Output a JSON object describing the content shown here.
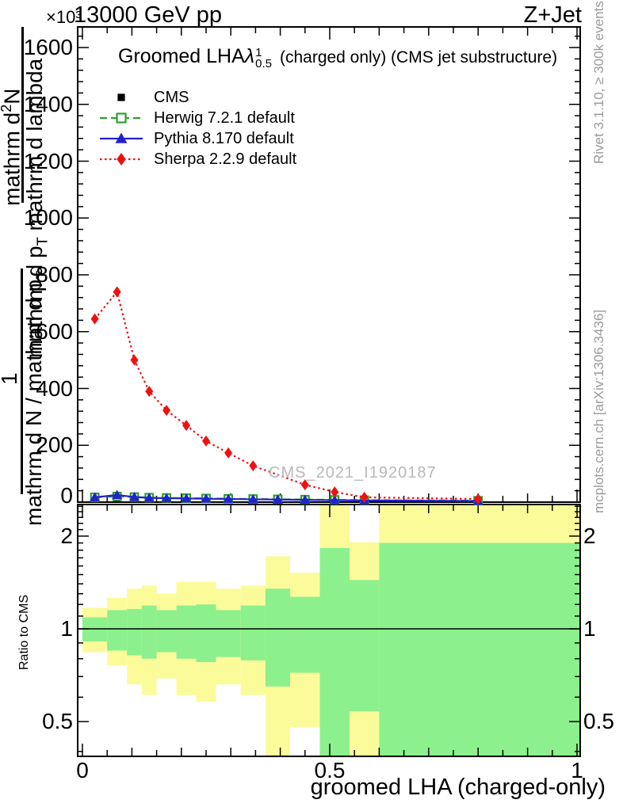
{
  "header": {
    "scale_label": "×10³",
    "beam_title": "13000 GeV pp",
    "process_label": "Z+Jet"
  },
  "plot_title": {
    "name": "Groomed LHA",
    "lambda": "λ",
    "lambda_sup": "1",
    "lambda_sub": "0.5",
    "qualifier": "(charged only) (CMS jet substructure)"
  },
  "watermark": "CMS_2021_I1920187",
  "sidebar_right": {
    "top": "Rivet 3.1.10, ≥ 300k events",
    "bottom": "mcplots.cern.ch [arXiv:1306.3436]"
  },
  "y_label": {
    "upper": {
      "num_parts": [
        {
          "t": "mathrm d"
        },
        {
          "t": "2",
          "sup": true
        },
        {
          "t": "N"
        }
      ],
      "den_parts": [
        {
          "t": "mathrm d p"
        },
        {
          "t": "T",
          "sub": true
        },
        {
          "t": " mathrm d lambda"
        }
      ]
    },
    "lower": {
      "num_parts": [
        {
          "t": "1"
        }
      ],
      "den_parts": [
        {
          "t": "mathrm d N / mathrm d p"
        },
        {
          "t": "T",
          "sub": true
        }
      ]
    }
  },
  "chart_data": {
    "type": "line",
    "title": "Groomed LHA lambda^1_0.5 (charged only) (CMS jet substructure)",
    "xlabel": "groomed LHA (charged-only)",
    "ylabel": "1/(dN/dp_T) d^2N/(dp_T dlambda)",
    "y_unit_multiplier": "×10³",
    "x_range": [
      0,
      1
    ],
    "y_range_10e3": [
      0,
      1671
    ],
    "x_major_ticks": [
      {
        "v": 0,
        "label": "0"
      },
      {
        "v": 0.5,
        "label": "0.5"
      },
      {
        "v": 1,
        "label": "1"
      }
    ],
    "x_medium_step": 0.1,
    "x_minor_step": 0.05,
    "y_major_ticks": [
      {
        "v": 0,
        "label": "0"
      },
      {
        "v": 200,
        "label": "200"
      },
      {
        "v": 400,
        "label": "400"
      },
      {
        "v": 600,
        "label": "600"
      },
      {
        "v": 800,
        "label": "800"
      },
      {
        "v": 1000,
        "label": "1000"
      },
      {
        "v": 1200,
        "label": "1200"
      },
      {
        "v": 1400,
        "label": "1400"
      },
      {
        "v": 1600,
        "label": "1600"
      }
    ],
    "y_minor_step": 40,
    "grid": false,
    "legend_position": "top-left-inside",
    "bin_edges": [
      0,
      0.05,
      0.09,
      0.12,
      0.15,
      0.19,
      0.23,
      0.27,
      0.32,
      0.37,
      0.42,
      0.48,
      0.54,
      0.6,
      1.0
    ],
    "bin_centers": [
      0.025,
      0.07,
      0.105,
      0.135,
      0.17,
      0.21,
      0.25,
      0.295,
      0.345,
      0.395,
      0.45,
      0.51,
      0.57,
      0.8
    ],
    "series": [
      {
        "name": "CMS",
        "color": "#000000",
        "marker": "filled-square",
        "line": "none",
        "values_10e3": [
          11,
          13,
          12,
          11,
          10,
          10,
          9,
          8,
          8,
          7,
          6,
          6,
          5,
          4
        ]
      },
      {
        "name": "Herwig 7.2.1 default",
        "color": "#2da02d",
        "marker": "open-square",
        "line": "dashed",
        "values_10e3": [
          17,
          20,
          18,
          16,
          15,
          14,
          13,
          12,
          11,
          10,
          9,
          8,
          7,
          5
        ]
      },
      {
        "name": "Pythia 8.170 default",
        "color": "#2222cc",
        "marker": "filled-triangle",
        "line": "solid",
        "values_10e3": [
          17,
          25,
          18,
          15,
          14,
          13,
          12,
          11,
          10,
          9,
          8,
          7,
          6,
          4
        ]
      },
      {
        "name": "Sherpa 2.2.9 default",
        "color": "#ee1111",
        "marker": "filled-diamond",
        "line": "dotted",
        "values_10e3": [
          645,
          740,
          500,
          390,
          323,
          270,
          215,
          173,
          128,
          null,
          61,
          36,
          17,
          11
        ]
      }
    ],
    "ratio": {
      "ylabel": "Ratio to CMS",
      "scale": "log",
      "y_range": [
        0.386,
        2.53
      ],
      "major_ticks": [
        {
          "v": 0.5,
          "label": "0.5"
        },
        {
          "v": 1,
          "label": "1"
        },
        {
          "v": 2,
          "label": "2"
        }
      ],
      "minor_tick_step": 0.1,
      "minor_tick_range": [
        0.4,
        2.5
      ],
      "reference_line": 1,
      "band_colors": {
        "outer": "#fbfb9a",
        "inner": "#8cf08c"
      },
      "yellow_band": [
        [
          0.84,
          1.17
        ],
        [
          0.76,
          1.26
        ],
        [
          0.66,
          1.35
        ],
        [
          0.61,
          1.38
        ],
        [
          0.69,
          1.3
        ],
        [
          0.61,
          1.42
        ],
        [
          0.58,
          1.42
        ],
        [
          0.66,
          1.35
        ],
        [
          0.61,
          1.38
        ],
        [
          0.38,
          1.72
        ],
        [
          0.48,
          1.52
        ],
        [
          0.38,
          2.6
        ],
        [
          0.38,
          1.91
        ],
        [
          0.38,
          2.6
        ]
      ],
      "green_band": [
        [
          0.91,
          1.09
        ],
        [
          0.85,
          1.15
        ],
        [
          0.82,
          1.16
        ],
        [
          0.8,
          1.19
        ],
        [
          0.84,
          1.15
        ],
        [
          0.8,
          1.19
        ],
        [
          0.78,
          1.2
        ],
        [
          0.81,
          1.15
        ],
        [
          0.79,
          1.19
        ],
        [
          0.65,
          1.35
        ],
        [
          0.72,
          1.27
        ],
        [
          0.38,
          1.83
        ],
        [
          0.54,
          1.44
        ],
        [
          0.38,
          1.9
        ]
      ]
    }
  }
}
